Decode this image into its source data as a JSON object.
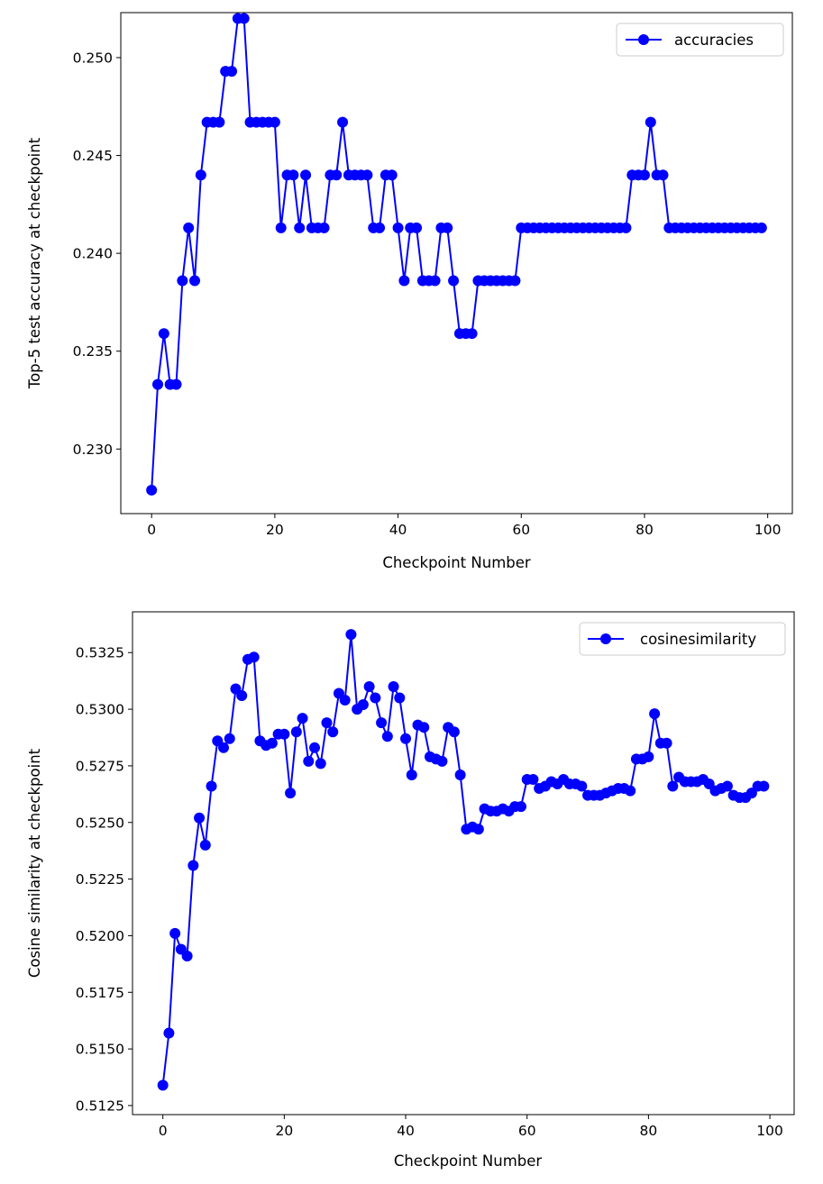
{
  "colors": {
    "series": "#0000ff",
    "axes": "#000000",
    "legend_border": "#cccccc",
    "background": "#ffffff"
  },
  "chart_data": [
    {
      "type": "line",
      "marker": "circle",
      "title": "",
      "xlabel": "Checkpoint Number",
      "ylabel": "Top-5 test accuracy at checkpoint",
      "xlim": [
        -5,
        104
      ],
      "ylim": [
        0.2267,
        0.2523
      ],
      "xticks": [
        0,
        20,
        40,
        60,
        80,
        100
      ],
      "xtick_labels": [
        "0",
        "20",
        "40",
        "60",
        "80",
        "100"
      ],
      "yticks": [
        0.23,
        0.235,
        0.24,
        0.245,
        0.25
      ],
      "ytick_labels": [
        "0.230",
        "0.235",
        "0.240",
        "0.245",
        "0.250"
      ],
      "grid": false,
      "legend_position": "top-right",
      "series": [
        {
          "name": "accuracies",
          "x_start": 0,
          "values": [
            0.2279,
            0.2333,
            0.2359,
            0.2333,
            0.2333,
            0.2386,
            0.2413,
            0.2386,
            0.244,
            0.2467,
            0.2467,
            0.2467,
            0.2493,
            0.2493,
            0.252,
            0.252,
            0.2467,
            0.2467,
            0.2467,
            0.2467,
            0.2467,
            0.2413,
            0.244,
            0.244,
            0.2413,
            0.244,
            0.2413,
            0.2413,
            0.2413,
            0.244,
            0.244,
            0.2467,
            0.244,
            0.244,
            0.244,
            0.244,
            0.2413,
            0.2413,
            0.244,
            0.244,
            0.2413,
            0.2386,
            0.2413,
            0.2413,
            0.2386,
            0.2386,
            0.2386,
            0.2413,
            0.2413,
            0.2386,
            0.2359,
            0.2359,
            0.2359,
            0.2386,
            0.2386,
            0.2386,
            0.2386,
            0.2386,
            0.2386,
            0.2386,
            0.2413,
            0.2413,
            0.2413,
            0.2413,
            0.2413,
            0.2413,
            0.2413,
            0.2413,
            0.2413,
            0.2413,
            0.2413,
            0.2413,
            0.2413,
            0.2413,
            0.2413,
            0.2413,
            0.2413,
            0.2413,
            0.244,
            0.244,
            0.244,
            0.2467,
            0.244,
            0.244,
            0.2413,
            0.2413,
            0.2413,
            0.2413,
            0.2413,
            0.2413,
            0.2413,
            0.2413,
            0.2413,
            0.2413,
            0.2413,
            0.2413,
            0.2413,
            0.2413,
            0.2413,
            0.2413
          ]
        }
      ]
    },
    {
      "type": "line",
      "marker": "circle",
      "title": "",
      "xlabel": "Checkpoint Number",
      "ylabel": "Cosine similarity at checkpoint",
      "xlim": [
        -5,
        104
      ],
      "ylim": [
        0.5121,
        0.5343
      ],
      "xticks": [
        0,
        20,
        40,
        60,
        80,
        100
      ],
      "xtick_labels": [
        "0",
        "20",
        "40",
        "60",
        "80",
        "100"
      ],
      "yticks": [
        0.5125,
        0.515,
        0.5175,
        0.52,
        0.5225,
        0.525,
        0.5275,
        0.53,
        0.5325
      ],
      "ytick_labels": [
        "0.5125",
        "0.5150",
        "0.5175",
        "0.5200",
        "0.5225",
        "0.5250",
        "0.5275",
        "0.5300",
        "0.5325"
      ],
      "grid": false,
      "legend_position": "top-right",
      "series": [
        {
          "name": "cosinesimilarity",
          "x_start": 0,
          "values": [
            0.5134,
            0.5157,
            0.5201,
            0.5194,
            0.5191,
            0.5231,
            0.5252,
            0.524,
            0.5266,
            0.5286,
            0.5283,
            0.5287,
            0.5309,
            0.5306,
            0.5322,
            0.5323,
            0.5286,
            0.5284,
            0.5285,
            0.5289,
            0.5289,
            0.5263,
            0.529,
            0.5296,
            0.5277,
            0.5283,
            0.5276,
            0.5294,
            0.529,
            0.5307,
            0.5304,
            0.5333,
            0.53,
            0.5302,
            0.531,
            0.5305,
            0.5294,
            0.5288,
            0.531,
            0.5305,
            0.5287,
            0.5271,
            0.5293,
            0.5292,
            0.5279,
            0.5278,
            0.5277,
            0.5292,
            0.529,
            0.5271,
            0.5247,
            0.5248,
            0.5247,
            0.5256,
            0.5255,
            0.5255,
            0.5256,
            0.5255,
            0.5257,
            0.5257,
            0.5269,
            0.5269,
            0.5265,
            0.5266,
            0.5268,
            0.5267,
            0.5269,
            0.5267,
            0.5267,
            0.5266,
            0.5262,
            0.5262,
            0.5262,
            0.5263,
            0.5264,
            0.5265,
            0.5265,
            0.5264,
            0.5278,
            0.5278,
            0.5279,
            0.5298,
            0.5285,
            0.5285,
            0.5266,
            0.527,
            0.5268,
            0.5268,
            0.5268,
            0.5269,
            0.5267,
            0.5264,
            0.5265,
            0.5266,
            0.5262,
            0.5261,
            0.5261,
            0.5263,
            0.5266,
            0.5266
          ]
        }
      ]
    }
  ]
}
